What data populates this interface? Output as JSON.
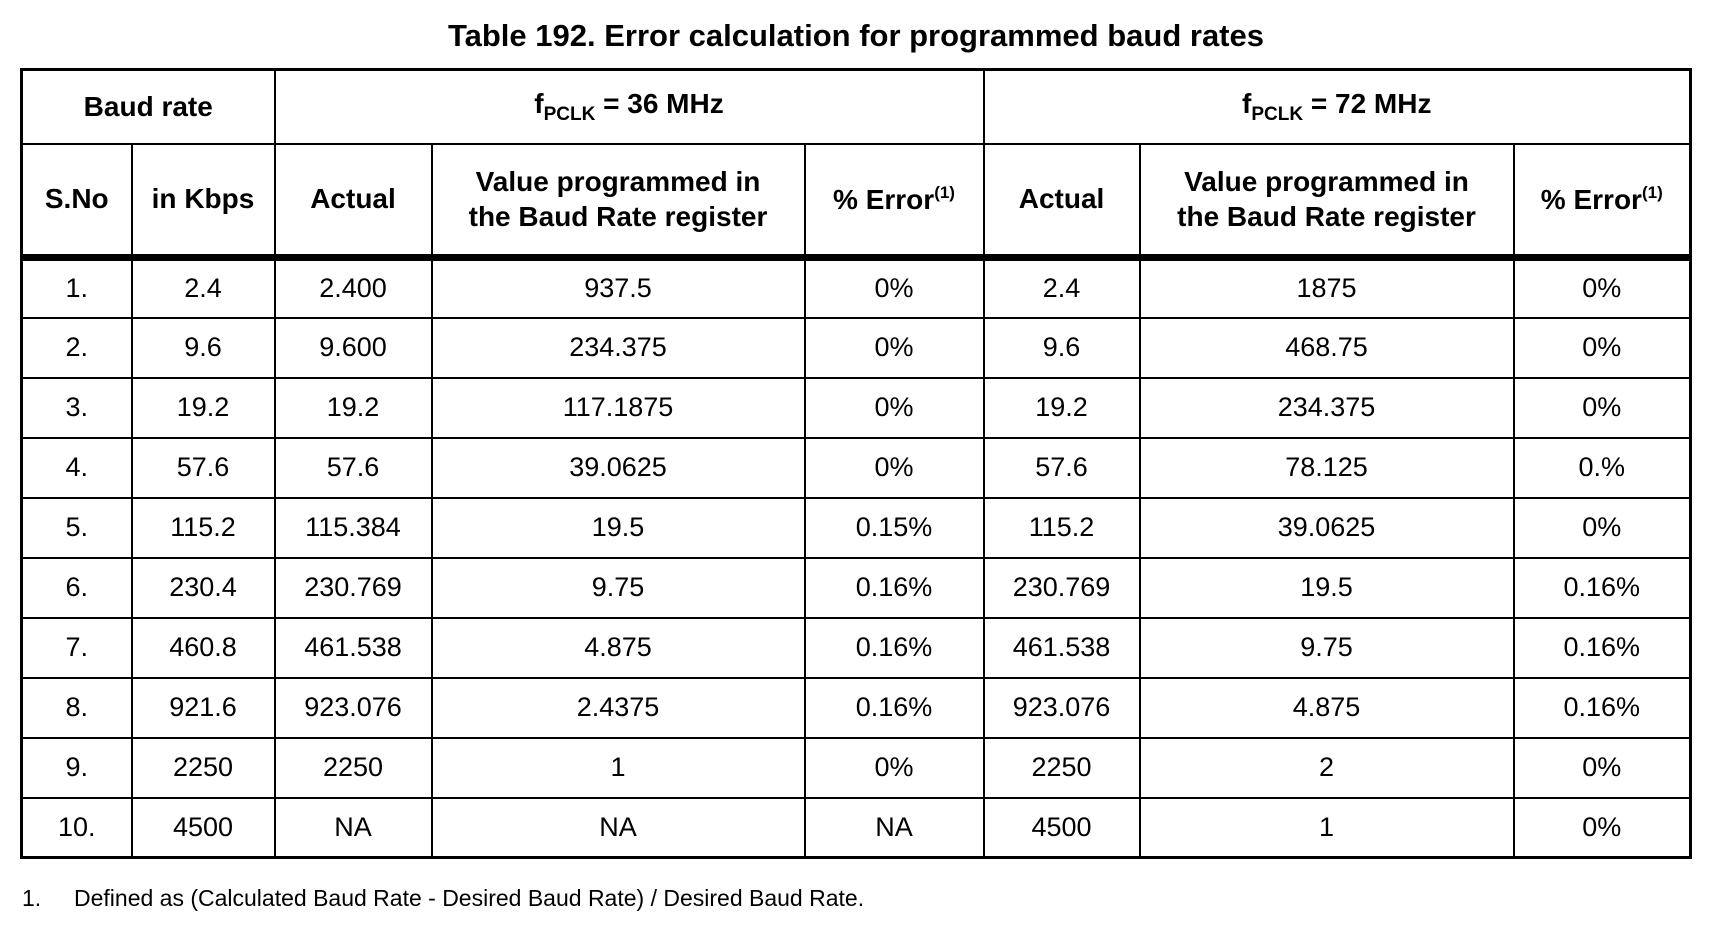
{
  "title": "Table 192. Error calculation for programmed baud rates",
  "table": {
    "group_headers": {
      "baud_rate": "Baud rate",
      "clk36": {
        "f": "f",
        "sub": "PCLK",
        "rest": " = 36 MHz"
      },
      "clk72": {
        "f": "f",
        "sub": "PCLK",
        "rest": " = 72 MHz"
      }
    },
    "col_headers": {
      "sno": "S.No",
      "kbps": "in Kbps",
      "actual": "Actual",
      "value_line1": "Value programmed in",
      "value_line2": "the Baud Rate register",
      "pct_error": "% Error",
      "pct_error_sup": "(1)"
    },
    "rows": [
      [
        "1.",
        "2.4",
        "2.400",
        "937.5",
        "0%",
        "2.4",
        "1875",
        "0%"
      ],
      [
        "2.",
        "9.6",
        "9.600",
        "234.375",
        "0%",
        "9.6",
        "468.75",
        "0%"
      ],
      [
        "3.",
        "19.2",
        "19.2",
        "117.1875",
        "0%",
        "19.2",
        "234.375",
        "0%"
      ],
      [
        "4.",
        "57.6",
        "57.6",
        "39.0625",
        "0%",
        "57.6",
        "78.125",
        "0.%"
      ],
      [
        "5.",
        "115.2",
        "115.384",
        "19.5",
        "0.15%",
        "115.2",
        "39.0625",
        "0%"
      ],
      [
        "6.",
        "230.4",
        "230.769",
        "9.75",
        "0.16%",
        "230.769",
        "19.5",
        "0.16%"
      ],
      [
        "7.",
        "460.8",
        "461.538",
        "4.875",
        "0.16%",
        "461.538",
        "9.75",
        "0.16%"
      ],
      [
        "8.",
        "921.6",
        "923.076",
        "2.4375",
        "0.16%",
        "923.076",
        "4.875",
        "0.16%"
      ],
      [
        "9.",
        "2250",
        "2250",
        "1",
        "0%",
        "2250",
        "2",
        "0%"
      ],
      [
        "10.",
        "4500",
        "NA",
        "NA",
        "NA",
        "4500",
        "1",
        "0%"
      ]
    ]
  },
  "footnote": {
    "number": "1.",
    "text": "Defined as (Calculated Baud Rate - Desired Baud Rate) / Desired Baud Rate."
  }
}
